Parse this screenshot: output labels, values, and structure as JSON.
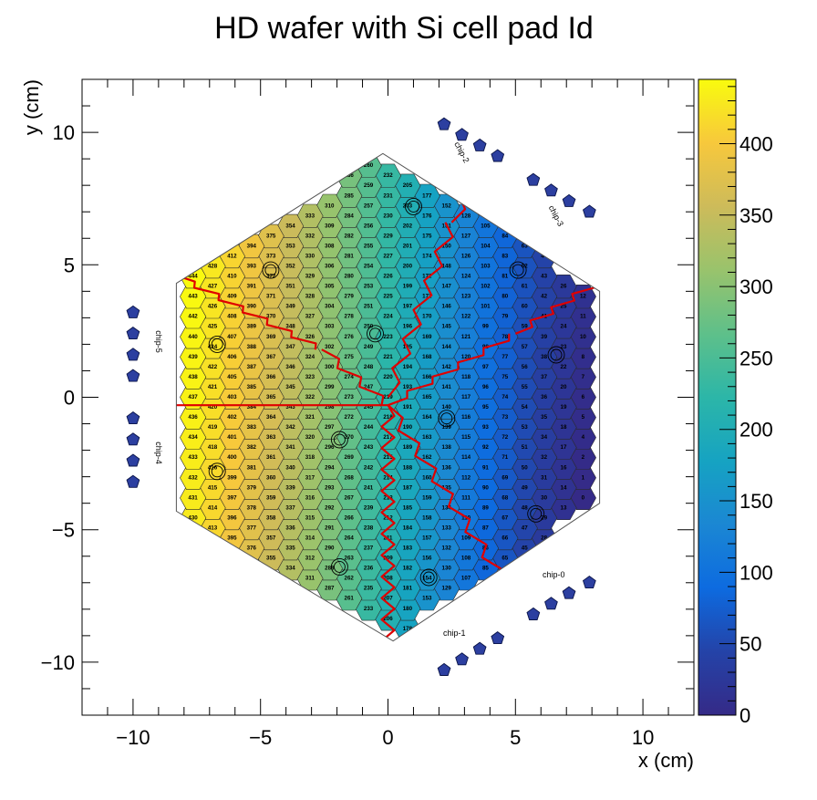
{
  "chart_data": {
    "type": "heatmap",
    "title": "HD wafer with Si cell pad Id",
    "xlabel": "x (cm)",
    "ylabel": "y (cm)",
    "xlim": [
      -12,
      12
    ],
    "ylim": [
      -12,
      12
    ],
    "x_ticks": [
      -10,
      -5,
      0,
      5,
      10
    ],
    "y_ticks": [
      -10,
      -5,
      0,
      5,
      10
    ],
    "colorbar": {
      "min": 0,
      "max": 445,
      "ticks": [
        0,
        50,
        100,
        150,
        200,
        250,
        300,
        350,
        400
      ]
    },
    "cell_pad_id_range": [
      0,
      444
    ],
    "wafer_vertices": [
      [
        -8.3,
        4.3
      ],
      [
        -0.2,
        9.2
      ],
      [
        8.3,
        4.0
      ],
      [
        8.3,
        -4.0
      ],
      [
        0.2,
        -9.2
      ],
      [
        -8.3,
        -4.3
      ]
    ],
    "calibration_cells": [
      {
        "x": 1.0,
        "y": 7.2
      },
      {
        "x": -4.6,
        "y": 4.8
      },
      {
        "x": 5.1,
        "y": 4.8
      },
      {
        "x": -6.7,
        "y": 2.0
      },
      {
        "x": -0.5,
        "y": 2.4
      },
      {
        "x": 6.6,
        "y": 1.6
      },
      {
        "x": 2.3,
        "y": -0.8
      },
      {
        "x": -1.9,
        "y": -1.6
      },
      {
        "x": -6.7,
        "y": -2.8
      },
      {
        "x": 5.8,
        "y": -4.4
      },
      {
        "x": -1.9,
        "y": -6.4
      },
      {
        "x": 1.6,
        "y": -6.8
      }
    ],
    "chips": [
      {
        "label": "chip-0",
        "x": 6.5,
        "y": -6.8,
        "pads": [
          [
            7.9,
            -7.0
          ],
          [
            7.1,
            -7.4
          ],
          [
            6.4,
            -7.8
          ],
          [
            5.7,
            -8.2
          ]
        ]
      },
      {
        "label": "chip-1",
        "x": 2.6,
        "y": -9.0,
        "pads": [
          [
            4.3,
            -9.1
          ],
          [
            3.6,
            -9.5
          ],
          [
            2.9,
            -9.9
          ],
          [
            2.2,
            -10.3
          ]
        ]
      },
      {
        "label": "chip-2",
        "x": 2.8,
        "y": 9.2,
        "pads": [
          [
            2.2,
            10.3
          ],
          [
            2.9,
            9.9
          ],
          [
            3.6,
            9.5
          ],
          [
            4.3,
            9.1
          ]
        ]
      },
      {
        "label": "chip-3",
        "x": 6.5,
        "y": 6.8,
        "pads": [
          [
            5.7,
            8.2
          ],
          [
            6.4,
            7.8
          ],
          [
            7.1,
            7.4
          ],
          [
            7.9,
            7.0
          ]
        ]
      },
      {
        "label": "chip-4",
        "x": -9.1,
        "y": -2.1,
        "pads": [
          [
            -10.0,
            -0.8
          ],
          [
            -10.0,
            -1.6
          ],
          [
            -10.0,
            -2.4
          ],
          [
            -10.0,
            -3.2
          ]
        ]
      },
      {
        "label": "chip-5",
        "x": -9.1,
        "y": 2.1,
        "pads": [
          [
            -10.0,
            3.2
          ],
          [
            -10.0,
            2.4
          ],
          [
            -10.0,
            1.6
          ],
          [
            -10.0,
            0.8
          ]
        ]
      }
    ]
  },
  "colors": {
    "palette": [
      "#352a87",
      "#2443a8",
      "#0d6be0",
      "#1b87d3",
      "#16a3c2",
      "#2cb6a8",
      "#5ec08a",
      "#99c36c",
      "#cdbb5a",
      "#f7c83c",
      "#f9fb0e"
    ],
    "boundary": "#e00000",
    "chip_pad": "#2c3fa0"
  }
}
